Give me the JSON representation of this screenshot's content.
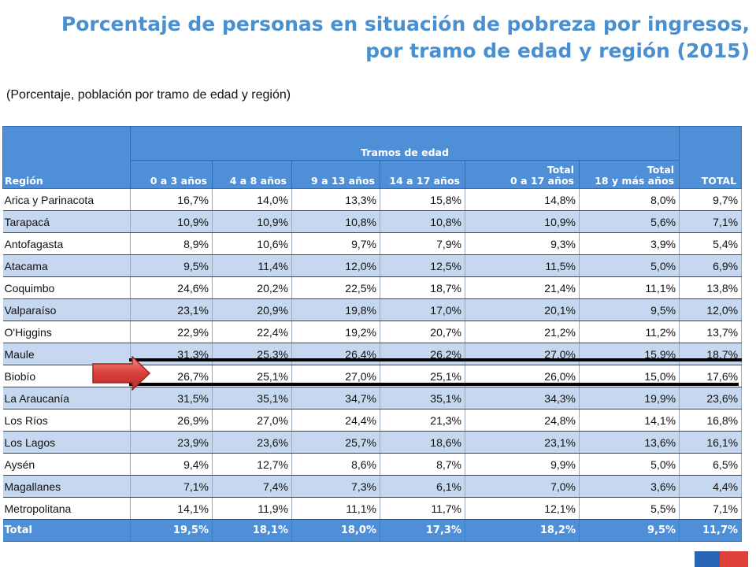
{
  "title_line1": "Porcentaje de personas en situación de pobreza por ingresos,",
  "title_line2": "por tramo de edad y región (2015)",
  "subtitle": "(Porcentaje, población por tramo de edad y región)",
  "headers": {
    "region": "Región",
    "group": "Tramos de edad",
    "c0": "0 a 3 años",
    "c1": "4 a 8 años",
    "c2": "9 a 13 años",
    "c3": "14 a 17 años",
    "c4a": "Total",
    "c4b": "0 a 17 años",
    "c5a": "Total",
    "c5b": "18 y más años",
    "total": "TOTAL"
  },
  "rows": [
    {
      "region": "Arica y Parinacota",
      "values": [
        "16,7%",
        "14,0%",
        "13,3%",
        "15,8%",
        "14,8%",
        "8,0%",
        "9,7%"
      ]
    },
    {
      "region": "Tarapacá",
      "values": [
        "10,9%",
        "10,9%",
        "10,8%",
        "10,8%",
        "10,9%",
        "5,6%",
        "7,1%"
      ]
    },
    {
      "region": "Antofagasta",
      "values": [
        "8,9%",
        "10,6%",
        "9,7%",
        "7,9%",
        "9,3%",
        "3,9%",
        "5,4%"
      ]
    },
    {
      "region": "Atacama",
      "values": [
        "9,5%",
        "11,4%",
        "12,0%",
        "12,5%",
        "11,5%",
        "5,0%",
        "6,9%"
      ]
    },
    {
      "region": "Coquimbo",
      "values": [
        "24,6%",
        "20,2%",
        "22,5%",
        "18,7%",
        "21,4%",
        "11,1%",
        "13,8%"
      ]
    },
    {
      "region": "Valparaíso",
      "values": [
        "23,1%",
        "20,9%",
        "19,8%",
        "17,0%",
        "20,1%",
        "9,5%",
        "12,0%"
      ]
    },
    {
      "region": "O'Higgins",
      "values": [
        "22,9%",
        "22,4%",
        "19,2%",
        "20,7%",
        "21,2%",
        "11,2%",
        "13,7%"
      ]
    },
    {
      "region": "Maule",
      "values": [
        "31,3%",
        "25,3%",
        "26,4%",
        "26,2%",
        "27,0%",
        "15,9%",
        "18,7%"
      ]
    },
    {
      "region": "Biobío",
      "values": [
        "26,7%",
        "25,1%",
        "27,0%",
        "25,1%",
        "26,0%",
        "15,0%",
        "17,6%"
      ]
    },
    {
      "region": "La Araucanía",
      "values": [
        "31,5%",
        "35,1%",
        "34,7%",
        "35,1%",
        "34,3%",
        "19,9%",
        "23,6%"
      ]
    },
    {
      "region": "Los Ríos",
      "values": [
        "26,9%",
        "27,0%",
        "24,4%",
        "21,3%",
        "24,8%",
        "14,1%",
        "16,8%"
      ]
    },
    {
      "region": "Los Lagos",
      "values": [
        "23,9%",
        "23,6%",
        "25,7%",
        "18,6%",
        "23,1%",
        "13,6%",
        "16,1%"
      ]
    },
    {
      "region": " Aysén",
      "values": [
        "9,4%",
        "12,7%",
        "8,6%",
        "8,7%",
        "9,9%",
        "5,0%",
        "6,5%"
      ]
    },
    {
      "region": "Magallanes",
      "values": [
        "7,1%",
        "7,4%",
        "7,3%",
        "6,1%",
        "7,0%",
        "3,6%",
        "4,4%"
      ]
    },
    {
      "region": "Metropolitana",
      "values": [
        "14,1%",
        "11,9%",
        "11,1%",
        "11,7%",
        "12,1%",
        "5,5%",
        "7,1%"
      ]
    }
  ],
  "total_row": {
    "region": "Total",
    "values": [
      "19,5%",
      "18,1%",
      "18,0%",
      "17,3%",
      "18,2%",
      "9,5%",
      "11,7%"
    ]
  },
  "colors": {
    "header_blue": "#4f8fd8",
    "alt_row": "#c6d8f0",
    "title_blue": "#4a90d0",
    "arrow_red": "#d9403a"
  }
}
